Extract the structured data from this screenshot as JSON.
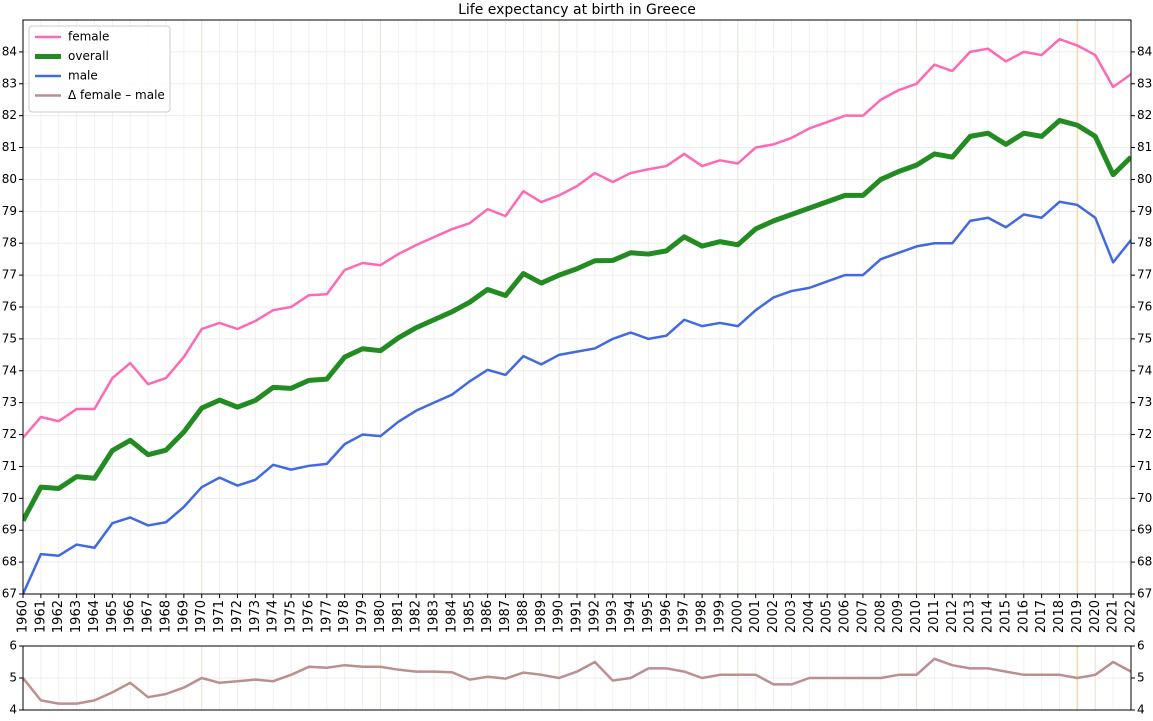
{
  "chart_data": [
    {
      "type": "line",
      "title": "Life expectancy at birth in Greece",
      "legend": "upper left",
      "grid": true,
      "marker_x": 2019,
      "x": [
        1960,
        1961,
        1962,
        1963,
        1964,
        1965,
        1966,
        1967,
        1968,
        1969,
        1970,
        1971,
        1972,
        1973,
        1974,
        1975,
        1976,
        1977,
        1978,
        1979,
        1980,
        1981,
        1982,
        1983,
        1984,
        1985,
        1986,
        1987,
        1988,
        1989,
        1990,
        1991,
        1992,
        1993,
        1994,
        1995,
        1996,
        1997,
        1998,
        1999,
        2000,
        2001,
        2002,
        2003,
        2004,
        2005,
        2006,
        2007,
        2008,
        2009,
        2010,
        2011,
        2012,
        2013,
        2014,
        2015,
        2016,
        2017,
        2018,
        2019,
        2020,
        2021,
        2022
      ],
      "xlim": [
        1960,
        2022
      ],
      "xticks": [
        1960,
        1961,
        1962,
        1963,
        1964,
        1965,
        1966,
        1967,
        1968,
        1969,
        1970,
        1971,
        1972,
        1973,
        1974,
        1975,
        1976,
        1977,
        1978,
        1979,
        1980,
        1981,
        1982,
        1983,
        1984,
        1985,
        1986,
        1987,
        1988,
        1989,
        1990,
        1991,
        1992,
        1993,
        1994,
        1995,
        1996,
        1997,
        1998,
        1999,
        2000,
        2001,
        2002,
        2003,
        2004,
        2005,
        2006,
        2007,
        2008,
        2009,
        2010,
        2011,
        2012,
        2013,
        2014,
        2015,
        2016,
        2017,
        2018,
        2019,
        2020,
        2021,
        2022
      ],
      "ylim": [
        67,
        85
      ],
      "yticks": [
        67,
        68,
        69,
        70,
        71,
        72,
        73,
        74,
        75,
        76,
        77,
        78,
        79,
        80,
        81,
        82,
        83,
        84
      ],
      "series": [
        {
          "name": "female",
          "color": "#ff69b4",
          "width": 2.5,
          "values": [
            71.9,
            72.55,
            72.42,
            72.8,
            72.8,
            73.77,
            74.24,
            73.58,
            73.77,
            74.43,
            75.31,
            75.5,
            75.31,
            75.56,
            75.9,
            76.0,
            76.37,
            76.4,
            77.16,
            77.38,
            77.31,
            77.66,
            77.94,
            78.19,
            78.44,
            78.63,
            79.07,
            78.85,
            79.63,
            79.29,
            79.5,
            79.79,
            80.2,
            79.92,
            80.2,
            80.32,
            80.42,
            80.8,
            80.42,
            80.6,
            80.5,
            81.0,
            81.1,
            81.3,
            81.6,
            81.8,
            82.0,
            82.0,
            82.5,
            82.8,
            83.0,
            83.6,
            83.4,
            84.0,
            84.1,
            83.7,
            84.0,
            83.9,
            84.4,
            84.2,
            83.9,
            82.9,
            83.3
          ]
        },
        {
          "name": "overall",
          "color": "#228b22",
          "width": 5,
          "values": [
            69.3,
            70.35,
            70.31,
            70.68,
            70.63,
            71.5,
            71.82,
            71.37,
            71.51,
            72.08,
            72.83,
            73.08,
            72.86,
            73.07,
            73.48,
            73.45,
            73.7,
            73.74,
            74.43,
            74.69,
            74.63,
            75.03,
            75.35,
            75.6,
            75.85,
            76.15,
            76.55,
            76.36,
            77.05,
            76.75,
            77.0,
            77.2,
            77.45,
            77.46,
            77.7,
            77.66,
            77.76,
            78.2,
            77.91,
            78.05,
            77.95,
            78.45,
            78.7,
            78.9,
            79.1,
            79.3,
            79.5,
            79.5,
            80.0,
            80.25,
            80.45,
            80.8,
            80.7,
            81.35,
            81.45,
            81.1,
            81.45,
            81.35,
            81.85,
            81.7,
            81.35,
            80.15,
            80.7
          ]
        },
        {
          "name": "male",
          "color": "#4169e1",
          "width": 2.5,
          "values": [
            67.0,
            68.25,
            68.2,
            68.55,
            68.45,
            69.22,
            69.4,
            69.15,
            69.25,
            69.73,
            70.35,
            70.65,
            70.4,
            70.58,
            71.05,
            70.9,
            71.02,
            71.08,
            71.7,
            72.0,
            71.95,
            72.4,
            72.75,
            73.0,
            73.25,
            73.67,
            74.03,
            73.87,
            74.46,
            74.2,
            74.5,
            74.6,
            74.7,
            75.0,
            75.2,
            75.0,
            75.1,
            75.6,
            75.4,
            75.5,
            75.4,
            75.9,
            76.3,
            76.5,
            76.6,
            76.8,
            77.0,
            77.0,
            77.5,
            77.7,
            77.9,
            78.0,
            78.0,
            78.7,
            78.8,
            78.5,
            78.9,
            78.8,
            79.3,
            79.2,
            78.8,
            77.4,
            78.1
          ]
        }
      ]
    },
    {
      "type": "line",
      "grid": true,
      "marker_x": 2019,
      "x": [
        1960,
        1961,
        1962,
        1963,
        1964,
        1965,
        1966,
        1967,
        1968,
        1969,
        1970,
        1971,
        1972,
        1973,
        1974,
        1975,
        1976,
        1977,
        1978,
        1979,
        1980,
        1981,
        1982,
        1983,
        1984,
        1985,
        1986,
        1987,
        1988,
        1989,
        1990,
        1991,
        1992,
        1993,
        1994,
        1995,
        1996,
        1997,
        1998,
        1999,
        2000,
        2001,
        2002,
        2003,
        2004,
        2005,
        2006,
        2007,
        2008,
        2009,
        2010,
        2011,
        2012,
        2013,
        2014,
        2015,
        2016,
        2017,
        2018,
        2019,
        2020,
        2021,
        2022
      ],
      "xlim": [
        1960,
        2022
      ],
      "ylim": [
        4,
        6
      ],
      "yticks": [
        4,
        5,
        6
      ],
      "series": [
        {
          "name": "Δ female – male",
          "color": "#bc8f8f",
          "width": 2.5,
          "values": [
            5.0,
            4.3,
            4.2,
            4.2,
            4.3,
            4.55,
            4.85,
            4.4,
            4.5,
            4.7,
            5.0,
            4.85,
            4.9,
            4.95,
            4.9,
            5.1,
            5.35,
            5.32,
            5.4,
            5.35,
            5.35,
            5.26,
            5.2,
            5.2,
            5.18,
            4.95,
            5.04,
            4.98,
            5.17,
            5.1,
            5.0,
            5.2,
            5.5,
            4.92,
            5.0,
            5.3,
            5.3,
            5.2,
            5.0,
            5.1,
            5.1,
            5.1,
            4.8,
            4.8,
            5.0,
            5.0,
            5.0,
            5.0,
            5.0,
            5.1,
            5.1,
            5.6,
            5.4,
            5.3,
            5.3,
            5.2,
            5.1,
            5.1,
            5.1,
            5.0,
            5.1,
            5.5,
            5.2
          ]
        }
      ]
    }
  ]
}
